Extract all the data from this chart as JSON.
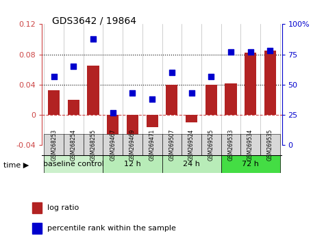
{
  "title": "GDS3642 / 19864",
  "categories": [
    "GSM268253",
    "GSM268254",
    "GSM268255",
    "GSM269467",
    "GSM269469",
    "GSM269471",
    "GSM269507",
    "GSM269524",
    "GSM269525",
    "GSM269533",
    "GSM269534",
    "GSM269535"
  ],
  "log_ratio": [
    0.033,
    0.02,
    0.065,
    -0.048,
    -0.028,
    -0.016,
    0.04,
    -0.01,
    0.04,
    0.042,
    0.082,
    0.085
  ],
  "percentile_rank": [
    57,
    65,
    88,
    27,
    43,
    38,
    60,
    43,
    57,
    77,
    77,
    78
  ],
  "bar_color": "#b22222",
  "dot_color": "#0000cd",
  "ylim_left": [
    -0.04,
    0.12
  ],
  "ylim_right": [
    0,
    100
  ],
  "yticks_left": [
    -0.04,
    0,
    0.04,
    0.08,
    0.12
  ],
  "yticks_right": [
    0,
    25,
    50,
    75,
    100
  ],
  "hlines": [
    0.04,
    0.08
  ],
  "zero_line_color": "#cc4444",
  "hline_color": "black",
  "bg_color": "white",
  "tick_label_color_left": "#cc4444",
  "tick_label_color_right": "#0000cd",
  "groups": [
    {
      "label": "baseline control",
      "start": 0,
      "end": 3,
      "color": "#ccf0cc"
    },
    {
      "label": "12 h",
      "start": 3,
      "end": 6,
      "color": "#b8ecb8"
    },
    {
      "label": "24 h",
      "start": 6,
      "end": 9,
      "color": "#b8ecb8"
    },
    {
      "label": "72 h",
      "start": 9,
      "end": 12,
      "color": "#44dd44"
    }
  ]
}
